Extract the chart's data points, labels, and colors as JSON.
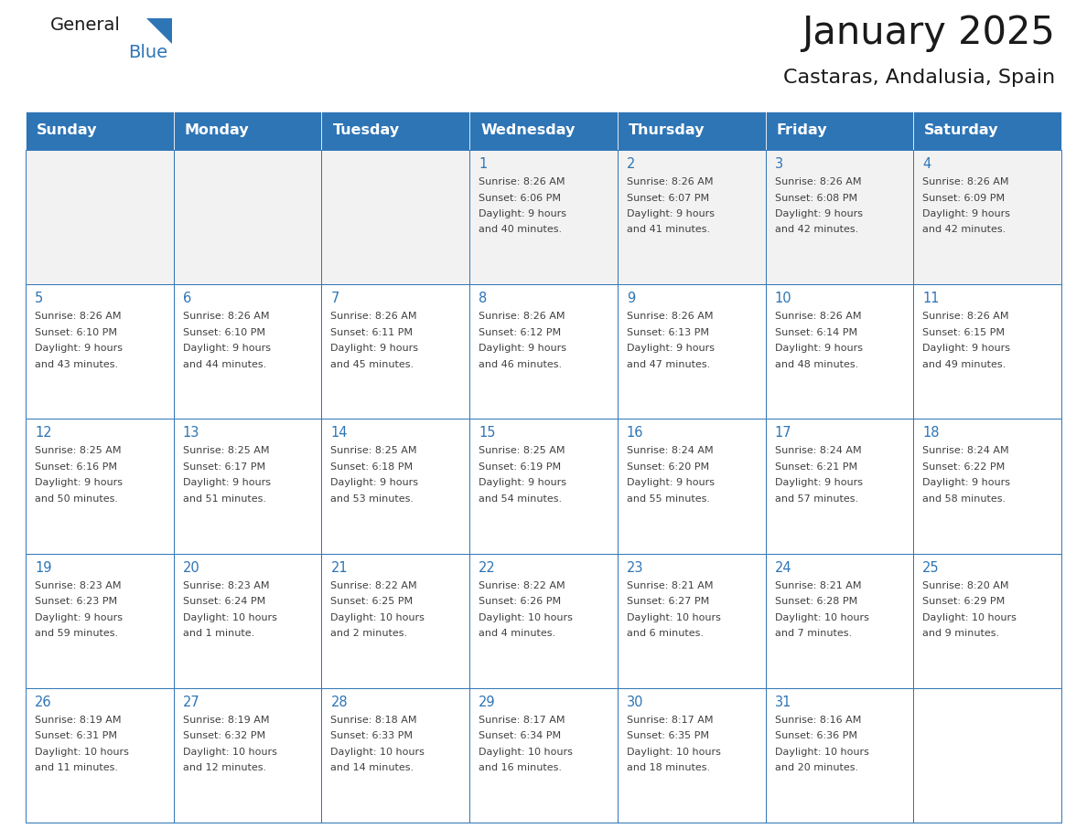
{
  "title": "January 2025",
  "subtitle": "Castaras, Andalusia, Spain",
  "days_of_week": [
    "Sunday",
    "Monday",
    "Tuesday",
    "Wednesday",
    "Thursday",
    "Friday",
    "Saturday"
  ],
  "header_bg": "#2E75B6",
  "header_text": "#FFFFFF",
  "cell_bg_light": "#FFFFFF",
  "cell_bg_alt": "#F2F2F2",
  "border_color": "#2E75B6",
  "text_color": "#404040",
  "day_num_color": "#2E75B6",
  "logo_black": "#1a1a1a",
  "logo_blue": "#2E75B6",
  "calendar_data": [
    [
      null,
      null,
      null,
      {
        "day": 1,
        "sunrise": "8:26 AM",
        "sunset": "6:06 PM",
        "daylight": "9 hours",
        "daylight2": "and 40 minutes."
      },
      {
        "day": 2,
        "sunrise": "8:26 AM",
        "sunset": "6:07 PM",
        "daylight": "9 hours",
        "daylight2": "and 41 minutes."
      },
      {
        "day": 3,
        "sunrise": "8:26 AM",
        "sunset": "6:08 PM",
        "daylight": "9 hours",
        "daylight2": "and 42 minutes."
      },
      {
        "day": 4,
        "sunrise": "8:26 AM",
        "sunset": "6:09 PM",
        "daylight": "9 hours",
        "daylight2": "and 42 minutes."
      }
    ],
    [
      {
        "day": 5,
        "sunrise": "8:26 AM",
        "sunset": "6:10 PM",
        "daylight": "9 hours",
        "daylight2": "and 43 minutes."
      },
      {
        "day": 6,
        "sunrise": "8:26 AM",
        "sunset": "6:10 PM",
        "daylight": "9 hours",
        "daylight2": "and 44 minutes."
      },
      {
        "day": 7,
        "sunrise": "8:26 AM",
        "sunset": "6:11 PM",
        "daylight": "9 hours",
        "daylight2": "and 45 minutes."
      },
      {
        "day": 8,
        "sunrise": "8:26 AM",
        "sunset": "6:12 PM",
        "daylight": "9 hours",
        "daylight2": "and 46 minutes."
      },
      {
        "day": 9,
        "sunrise": "8:26 AM",
        "sunset": "6:13 PM",
        "daylight": "9 hours",
        "daylight2": "and 47 minutes."
      },
      {
        "day": 10,
        "sunrise": "8:26 AM",
        "sunset": "6:14 PM",
        "daylight": "9 hours",
        "daylight2": "and 48 minutes."
      },
      {
        "day": 11,
        "sunrise": "8:26 AM",
        "sunset": "6:15 PM",
        "daylight": "9 hours",
        "daylight2": "and 49 minutes."
      }
    ],
    [
      {
        "day": 12,
        "sunrise": "8:25 AM",
        "sunset": "6:16 PM",
        "daylight": "9 hours",
        "daylight2": "and 50 minutes."
      },
      {
        "day": 13,
        "sunrise": "8:25 AM",
        "sunset": "6:17 PM",
        "daylight": "9 hours",
        "daylight2": "and 51 minutes."
      },
      {
        "day": 14,
        "sunrise": "8:25 AM",
        "sunset": "6:18 PM",
        "daylight": "9 hours",
        "daylight2": "and 53 minutes."
      },
      {
        "day": 15,
        "sunrise": "8:25 AM",
        "sunset": "6:19 PM",
        "daylight": "9 hours",
        "daylight2": "and 54 minutes."
      },
      {
        "day": 16,
        "sunrise": "8:24 AM",
        "sunset": "6:20 PM",
        "daylight": "9 hours",
        "daylight2": "and 55 minutes."
      },
      {
        "day": 17,
        "sunrise": "8:24 AM",
        "sunset": "6:21 PM",
        "daylight": "9 hours",
        "daylight2": "and 57 minutes."
      },
      {
        "day": 18,
        "sunrise": "8:24 AM",
        "sunset": "6:22 PM",
        "daylight": "9 hours",
        "daylight2": "and 58 minutes."
      }
    ],
    [
      {
        "day": 19,
        "sunrise": "8:23 AM",
        "sunset": "6:23 PM",
        "daylight": "9 hours",
        "daylight2": "and 59 minutes."
      },
      {
        "day": 20,
        "sunrise": "8:23 AM",
        "sunset": "6:24 PM",
        "daylight": "10 hours",
        "daylight2": "and 1 minute."
      },
      {
        "day": 21,
        "sunrise": "8:22 AM",
        "sunset": "6:25 PM",
        "daylight": "10 hours",
        "daylight2": "and 2 minutes."
      },
      {
        "day": 22,
        "sunrise": "8:22 AM",
        "sunset": "6:26 PM",
        "daylight": "10 hours",
        "daylight2": "and 4 minutes."
      },
      {
        "day": 23,
        "sunrise": "8:21 AM",
        "sunset": "6:27 PM",
        "daylight": "10 hours",
        "daylight2": "and 6 minutes."
      },
      {
        "day": 24,
        "sunrise": "8:21 AM",
        "sunset": "6:28 PM",
        "daylight": "10 hours",
        "daylight2": "and 7 minutes."
      },
      {
        "day": 25,
        "sunrise": "8:20 AM",
        "sunset": "6:29 PM",
        "daylight": "10 hours",
        "daylight2": "and 9 minutes."
      }
    ],
    [
      {
        "day": 26,
        "sunrise": "8:19 AM",
        "sunset": "6:31 PM",
        "daylight": "10 hours",
        "daylight2": "and 11 minutes."
      },
      {
        "day": 27,
        "sunrise": "8:19 AM",
        "sunset": "6:32 PM",
        "daylight": "10 hours",
        "daylight2": "and 12 minutes."
      },
      {
        "day": 28,
        "sunrise": "8:18 AM",
        "sunset": "6:33 PM",
        "daylight": "10 hours",
        "daylight2": "and 14 minutes."
      },
      {
        "day": 29,
        "sunrise": "8:17 AM",
        "sunset": "6:34 PM",
        "daylight": "10 hours",
        "daylight2": "and 16 minutes."
      },
      {
        "day": 30,
        "sunrise": "8:17 AM",
        "sunset": "6:35 PM",
        "daylight": "10 hours",
        "daylight2": "and 18 minutes."
      },
      {
        "day": 31,
        "sunrise": "8:16 AM",
        "sunset": "6:36 PM",
        "daylight": "10 hours",
        "daylight2": "and 20 minutes."
      },
      null
    ]
  ]
}
